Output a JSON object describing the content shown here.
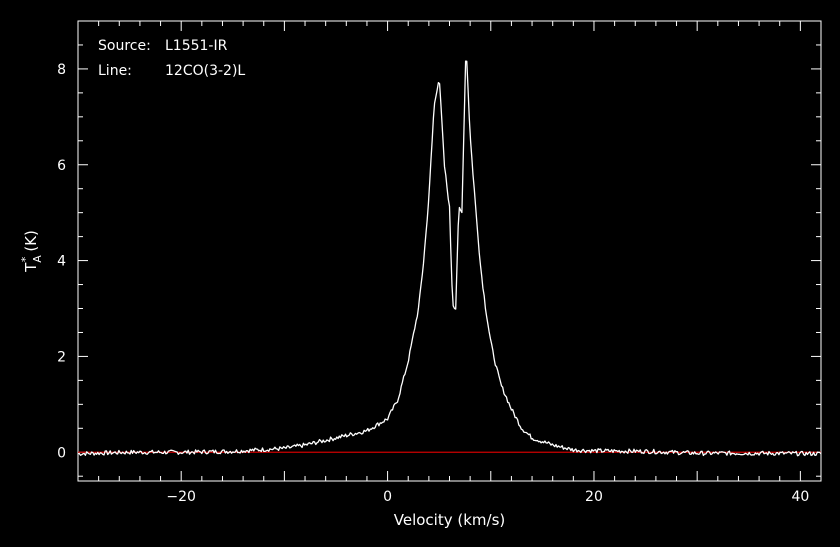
{
  "chart_data": {
    "type": "line",
    "annotation": {
      "source_label": "Source:",
      "source_value": "L1551-IR",
      "line_label": "Line:",
      "line_value": "12CO(3-2)L"
    },
    "xlabel": "Velocity (km/s)",
    "ylabel_main": "T",
    "ylabel_sub": "A",
    "ylabel_sup": "*",
    "ylabel_unit": "(K)",
    "xlim": [
      -30,
      42
    ],
    "ylim": [
      -0.6,
      9.0
    ],
    "x_ticks": [
      -20,
      0,
      20,
      40
    ],
    "x_tick_labels": [
      "−20",
      "0",
      "20",
      "40"
    ],
    "y_ticks": [
      0,
      2,
      4,
      6,
      8
    ],
    "y_tick_labels": [
      "0",
      "2",
      "4",
      "6",
      "8"
    ],
    "baseline": 0,
    "series": [
      {
        "color": "#ffffff",
        "x": [
          -30,
          -25,
          -20,
          -15,
          -10,
          -8,
          -6,
          -4,
          -2,
          0,
          1,
          2,
          3,
          3.5,
          4,
          4.5,
          5,
          5.5,
          6,
          6.3,
          6.6,
          6.9,
          7.2,
          7.6,
          8,
          8.5,
          9,
          9.5,
          10,
          10.5,
          11,
          12,
          13,
          14,
          16,
          18,
          20,
          25,
          30,
          35,
          42
        ],
        "y": [
          -0.03,
          0,
          0,
          0.02,
          0.08,
          0.15,
          0.25,
          0.35,
          0.45,
          0.7,
          1.1,
          1.9,
          3.0,
          4.0,
          5.3,
          7.2,
          7.85,
          6.0,
          5.1,
          3.1,
          3.0,
          5.1,
          5.0,
          8.55,
          6.6,
          5.2,
          3.9,
          3.0,
          2.3,
          1.8,
          1.4,
          0.9,
          0.5,
          0.3,
          0.15,
          0.05,
          0.03,
          0.02,
          -0.02,
          -0.02,
          -0.03
        ]
      }
    ],
    "baseline_color": "#cc0000"
  }
}
